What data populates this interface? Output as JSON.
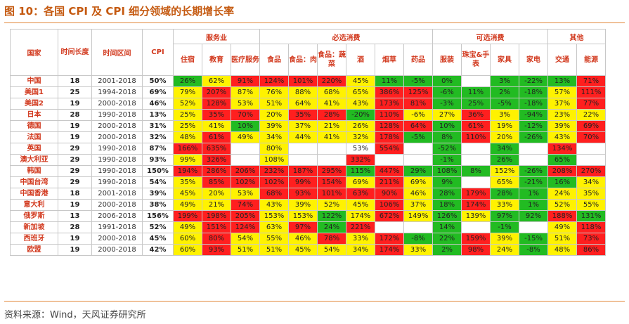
{
  "title": "图 10：各国 CPI 及 CPI 细分领域的长期增长率",
  "source": "资料来源：Wind，天风证券研究所",
  "colors": {
    "high": "#ff1f1f",
    "mid": "#fff200",
    "low": "#22bb22",
    "header_text": "#d23a1f",
    "accent": "#c55a11"
  },
  "headers": {
    "country": "国家",
    "years": "时间长度",
    "interval": "时间区间",
    "cpi": "CPI",
    "groups": [
      {
        "label": "服务业",
        "span": 3
      },
      {
        "label": "必选消费",
        "span": 6
      },
      {
        "label": "可选消费",
        "span": 4
      },
      {
        "label": "其他",
        "span": 2
      }
    ],
    "sub": [
      "住宿",
      "教育",
      "医疗服务",
      "食品",
      "食品：肉",
      "食品：蔬菜",
      "酒",
      "烟草",
      "药品",
      "服装",
      "珠宝&手表",
      "家具",
      "家电",
      "交通",
      "能源"
    ]
  },
  "rows": [
    {
      "country": "中国",
      "years": "18",
      "interval": "2001-2018",
      "cpi": "50%",
      "cells": [
        [
          "26%",
          "g"
        ],
        [
          "62%",
          "y"
        ],
        [
          "91%",
          "r"
        ],
        [
          "124%",
          "r"
        ],
        [
          "101%",
          "r"
        ],
        [
          "220%",
          "r"
        ],
        [
          "45%",
          "y"
        ],
        [
          "11%",
          "g"
        ],
        [
          "-5%",
          "g"
        ],
        [
          "0%",
          "g"
        ],
        [
          "",
          ""
        ],
        [
          "3%",
          "g"
        ],
        [
          "-22%",
          "g"
        ],
        [
          "13%",
          "g"
        ],
        [
          "71%",
          "r"
        ]
      ]
    },
    {
      "country": "美国1",
      "years": "25",
      "interval": "1994-2018",
      "cpi": "69%",
      "cells": [
        [
          "79%",
          "y"
        ],
        [
          "207%",
          "r"
        ],
        [
          "87%",
          "y"
        ],
        [
          "76%",
          "y"
        ],
        [
          "88%",
          "y"
        ],
        [
          "68%",
          "y"
        ],
        [
          "65%",
          "y"
        ],
        [
          "386%",
          "r"
        ],
        [
          "125%",
          "r"
        ],
        [
          "-6%",
          "g"
        ],
        [
          "11%",
          "g"
        ],
        [
          "2%",
          "g"
        ],
        [
          "-18%",
          "g"
        ],
        [
          "57%",
          "y"
        ],
        [
          "111%",
          "r"
        ]
      ]
    },
    {
      "country": "美国2",
      "years": "19",
      "interval": "2000-2018",
      "cpi": "46%",
      "cells": [
        [
          "52%",
          "y"
        ],
        [
          "128%",
          "r"
        ],
        [
          "53%",
          "y"
        ],
        [
          "51%",
          "y"
        ],
        [
          "64%",
          "y"
        ],
        [
          "41%",
          "y"
        ],
        [
          "43%",
          "y"
        ],
        [
          "173%",
          "r"
        ],
        [
          "81%",
          "r"
        ],
        [
          "-3%",
          "g"
        ],
        [
          "25%",
          "g"
        ],
        [
          "-5%",
          "g"
        ],
        [
          "-18%",
          "g"
        ],
        [
          "37%",
          "y"
        ],
        [
          "77%",
          "r"
        ]
      ]
    },
    {
      "country": "日本",
      "years": "28",
      "interval": "1990-2018",
      "cpi": "13%",
      "cells": [
        [
          "25%",
          "y"
        ],
        [
          "35%",
          "r"
        ],
        [
          "70%",
          "r"
        ],
        [
          "20%",
          "y"
        ],
        [
          "35%",
          "r"
        ],
        [
          "28%",
          "r"
        ],
        [
          "-20%",
          "g"
        ],
        [
          "110%",
          "r"
        ],
        [
          "-6%",
          "y"
        ],
        [
          "27%",
          "y"
        ],
        [
          "36%",
          "r"
        ],
        [
          "3%",
          "y"
        ],
        [
          "-94%",
          "g"
        ],
        [
          "23%",
          "y"
        ],
        [
          "22%",
          "y"
        ]
      ]
    },
    {
      "country": "德国",
      "years": "19",
      "interval": "2000-2018",
      "cpi": "31%",
      "cells": [
        [
          "25%",
          "y"
        ],
        [
          "41%",
          "y"
        ],
        [
          "10%",
          "g"
        ],
        [
          "39%",
          "y"
        ],
        [
          "37%",
          "y"
        ],
        [
          "21%",
          "y"
        ],
        [
          "26%",
          "y"
        ],
        [
          "128%",
          "r"
        ],
        [
          "64%",
          "r"
        ],
        [
          "10%",
          "g"
        ],
        [
          "61%",
          "r"
        ],
        [
          "19%",
          "y"
        ],
        [
          "-12%",
          "g"
        ],
        [
          "39%",
          "y"
        ],
        [
          "69%",
          "r"
        ]
      ]
    },
    {
      "country": "法国",
      "years": "19",
      "interval": "2000-2018",
      "cpi": "32%",
      "cells": [
        [
          "48%",
          "y"
        ],
        [
          "61%",
          "r"
        ],
        [
          "49%",
          "y"
        ],
        [
          "34%",
          "y"
        ],
        [
          "44%",
          "y"
        ],
        [
          "41%",
          "y"
        ],
        [
          "32%",
          "y"
        ],
        [
          "178%",
          "r"
        ],
        [
          "-5%",
          "g"
        ],
        [
          "8%",
          "g"
        ],
        [
          "110%",
          "r"
        ],
        [
          "20%",
          "y"
        ],
        [
          "-26%",
          "g"
        ],
        [
          "43%",
          "y"
        ],
        [
          "70%",
          "r"
        ]
      ]
    },
    {
      "country": "英国",
      "years": "29",
      "interval": "1990-2018",
      "cpi": "87%",
      "cells": [
        [
          "166%",
          "r"
        ],
        [
          "635%",
          "r"
        ],
        [
          "",
          ""
        ],
        [
          "80%",
          "y"
        ],
        [
          "",
          ""
        ],
        [
          "",
          ""
        ],
        [
          "53%",
          "w"
        ],
        [
          "554%",
          "r"
        ],
        [
          "",
          ""
        ],
        [
          "-52%",
          "g"
        ],
        [
          "",
          ""
        ],
        [
          "34%",
          "g"
        ],
        [
          "",
          ""
        ],
        [
          "134%",
          "r"
        ],
        [
          "",
          ""
        ]
      ]
    },
    {
      "country": "澳大利亚",
      "years": "29",
      "interval": "1990-2018",
      "cpi": "93%",
      "cells": [
        [
          "99%",
          "y"
        ],
        [
          "326%",
          "r"
        ],
        [
          "",
          ""
        ],
        [
          "108%",
          "y"
        ],
        [
          "",
          ""
        ],
        [
          "",
          ""
        ],
        [
          "332%",
          "r"
        ],
        [
          "",
          ""
        ],
        [
          "",
          ""
        ],
        [
          "-1%",
          "g"
        ],
        [
          "",
          ""
        ],
        [
          "26%",
          "g"
        ],
        [
          "",
          ""
        ],
        [
          "65%",
          "g"
        ],
        [
          "",
          ""
        ]
      ]
    },
    {
      "country": "韩国",
      "years": "29",
      "interval": "1990-2018",
      "cpi": "150%",
      "cells": [
        [
          "194%",
          "r"
        ],
        [
          "286%",
          "r"
        ],
        [
          "206%",
          "r"
        ],
        [
          "232%",
          "r"
        ],
        [
          "187%",
          "r"
        ],
        [
          "295%",
          "r"
        ],
        [
          "115%",
          "g"
        ],
        [
          "447%",
          "r"
        ],
        [
          "29%",
          "g"
        ],
        [
          "108%",
          "g"
        ],
        [
          "8%",
          "g"
        ],
        [
          "152%",
          "y"
        ],
        [
          "-26%",
          "g"
        ],
        [
          "208%",
          "r"
        ],
        [
          "270%",
          "r"
        ]
      ]
    },
    {
      "country": "中国台湾",
      "years": "29",
      "interval": "1990-2018",
      "cpi": "54%",
      "cells": [
        [
          "35%",
          "y"
        ],
        [
          "85%",
          "r"
        ],
        [
          "102%",
          "r"
        ],
        [
          "102%",
          "r"
        ],
        [
          "99%",
          "r"
        ],
        [
          "154%",
          "r"
        ],
        [
          "69%",
          "y"
        ],
        [
          "211%",
          "r"
        ],
        [
          "69%",
          "y"
        ],
        [
          "9%",
          "g"
        ],
        [
          "",
          ""
        ],
        [
          "65%",
          "y"
        ],
        [
          "-21%",
          "g"
        ],
        [
          "16%",
          "g"
        ],
        [
          "34%",
          "y"
        ]
      ]
    },
    {
      "country": "中国香港",
      "years": "18",
      "interval": "2001-2018",
      "cpi": "39%",
      "cells": [
        [
          "45%",
          "y"
        ],
        [
          "20%",
          "y"
        ],
        [
          "53%",
          "y"
        ],
        [
          "68%",
          "r"
        ],
        [
          "93%",
          "r"
        ],
        [
          "101%",
          "r"
        ],
        [
          "63%",
          "r"
        ],
        [
          "90%",
          "r"
        ],
        [
          "46%",
          "y"
        ],
        [
          "28%",
          "g"
        ],
        [
          "179%",
          "r"
        ],
        [
          "28%",
          "g"
        ],
        [
          "1%",
          "g"
        ],
        [
          "24%",
          "y"
        ],
        [
          "35%",
          "y"
        ]
      ]
    },
    {
      "country": "意大利",
      "years": "19",
      "interval": "2000-2018",
      "cpi": "38%",
      "cells": [
        [
          "49%",
          "y"
        ],
        [
          "21%",
          "y"
        ],
        [
          "74%",
          "r"
        ],
        [
          "43%",
          "y"
        ],
        [
          "39%",
          "y"
        ],
        [
          "52%",
          "y"
        ],
        [
          "45%",
          "y"
        ],
        [
          "106%",
          "r"
        ],
        [
          "37%",
          "y"
        ],
        [
          "18%",
          "g"
        ],
        [
          "174%",
          "r"
        ],
        [
          "33%",
          "y"
        ],
        [
          "1%",
          "g"
        ],
        [
          "52%",
          "y"
        ],
        [
          "55%",
          "y"
        ]
      ]
    },
    {
      "country": "俄罗斯",
      "years": "13",
      "interval": "2006-2018",
      "cpi": "156%",
      "cells": [
        [
          "199%",
          "r"
        ],
        [
          "198%",
          "r"
        ],
        [
          "205%",
          "r"
        ],
        [
          "153%",
          "y"
        ],
        [
          "153%",
          "y"
        ],
        [
          "122%",
          "g"
        ],
        [
          "174%",
          "y"
        ],
        [
          "672%",
          "r"
        ],
        [
          "149%",
          "y"
        ],
        [
          "126%",
          "g"
        ],
        [
          "139%",
          "y"
        ],
        [
          "97%",
          "g"
        ],
        [
          "92%",
          "g"
        ],
        [
          "188%",
          "r"
        ],
        [
          "131%",
          "g"
        ]
      ]
    },
    {
      "country": "新加坡",
      "years": "28",
      "interval": "1991-2018",
      "cpi": "52%",
      "cells": [
        [
          "49%",
          "y"
        ],
        [
          "151%",
          "r"
        ],
        [
          "124%",
          "r"
        ],
        [
          "63%",
          "y"
        ],
        [
          "97%",
          "r"
        ],
        [
          "24%",
          "g"
        ],
        [
          "221%",
          "r"
        ],
        [
          "",
          ""
        ],
        [
          "",
          ""
        ],
        [
          "14%",
          "g"
        ],
        [
          "",
          ""
        ],
        [
          "-1%",
          "g"
        ],
        [
          "",
          ""
        ],
        [
          "49%",
          "y"
        ],
        [
          "118%",
          "r"
        ]
      ]
    },
    {
      "country": "西班牙",
      "years": "19",
      "interval": "2000-2018",
      "cpi": "45%",
      "cells": [
        [
          "60%",
          "y"
        ],
        [
          "80%",
          "r"
        ],
        [
          "54%",
          "y"
        ],
        [
          "55%",
          "y"
        ],
        [
          "46%",
          "y"
        ],
        [
          "78%",
          "r"
        ],
        [
          "33%",
          "y"
        ],
        [
          "172%",
          "r"
        ],
        [
          "-8%",
          "g"
        ],
        [
          "22%",
          "g"
        ],
        [
          "159%",
          "r"
        ],
        [
          "39%",
          "y"
        ],
        [
          "-15%",
          "g"
        ],
        [
          "51%",
          "y"
        ],
        [
          "73%",
          "r"
        ]
      ]
    },
    {
      "country": "欧盟",
      "years": "19",
      "interval": "2000-2018",
      "cpi": "42%",
      "cells": [
        [
          "60%",
          "y"
        ],
        [
          "93%",
          "r"
        ],
        [
          "51%",
          "y"
        ],
        [
          "51%",
          "y"
        ],
        [
          "45%",
          "y"
        ],
        [
          "54%",
          "y"
        ],
        [
          "34%",
          "y"
        ],
        [
          "174%",
          "r"
        ],
        [
          "33%",
          "y"
        ],
        [
          "2%",
          "g"
        ],
        [
          "98%",
          "r"
        ],
        [
          "24%",
          "y"
        ],
        [
          "-8%",
          "g"
        ],
        [
          "48%",
          "y"
        ],
        [
          "86%",
          "r"
        ]
      ]
    }
  ]
}
